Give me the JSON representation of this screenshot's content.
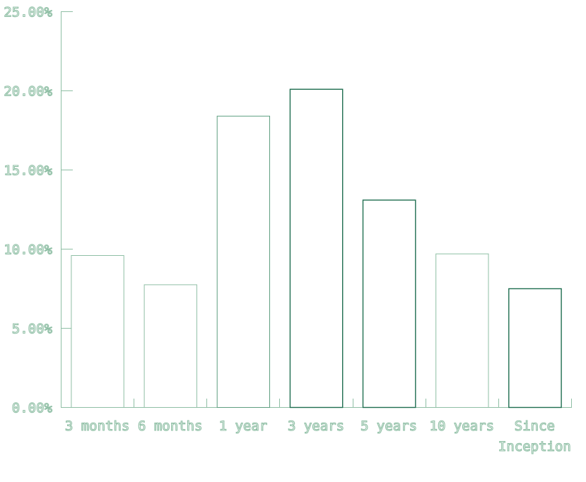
{
  "chart_data": {
    "type": "bar",
    "title": "",
    "xlabel": "",
    "ylabel": "",
    "categories": [
      "3 months",
      "6 months",
      "1 year",
      "3 years",
      "5 years",
      "10 years",
      "Since Inception"
    ],
    "category_lines": [
      [
        "3 months"
      ],
      [
        "6 months"
      ],
      [
        "1 year"
      ],
      [
        "3 years"
      ],
      [
        "5 years"
      ],
      [
        "10 years"
      ],
      [
        "Since",
        "Inception"
      ]
    ],
    "values": [
      9.6,
      7.75,
      18.4,
      20.1,
      13.1,
      9.7,
      7.5
    ],
    "ylim": [
      0,
      25
    ],
    "yticks": [
      0,
      5,
      10,
      15,
      20,
      25
    ],
    "ytick_labels": [
      "0.00%",
      "5.00%",
      "10.00%",
      "15.00%",
      "20.00%",
      "25.00%"
    ],
    "grid": false,
    "legend": "none",
    "colors": {
      "axis": "#8fbfa5",
      "label": "#8fbfa5",
      "bars": [
        "#8fbfa5",
        "#8fbfa5",
        "#5e9e80",
        "#1f6e50",
        "#1f6e50",
        "#8fbfa5",
        "#1f6e50"
      ]
    }
  }
}
